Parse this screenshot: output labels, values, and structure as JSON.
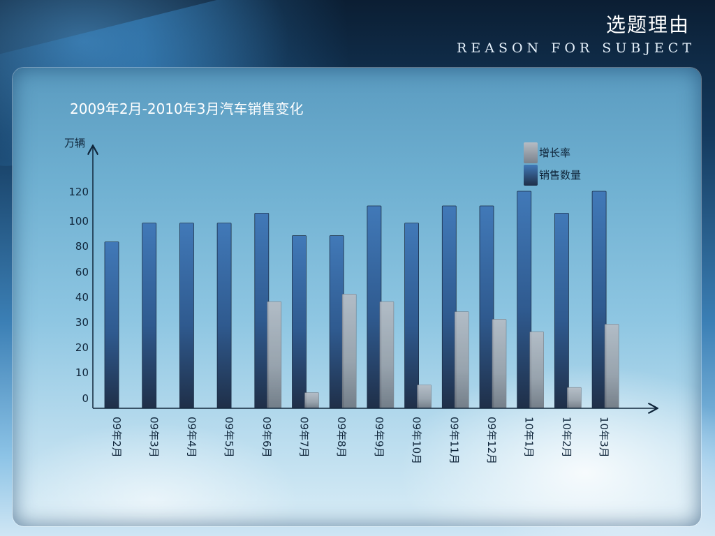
{
  "header": {
    "title": "选题理由",
    "subtitle": "REASON FOR SUBJECT"
  },
  "colors": {
    "sales_bar": "#3b6ea8",
    "sales_bar_dark": "#233a5a",
    "growth_bar": "#a9b0b8",
    "growth_bar_dark": "#6c747e"
  },
  "chart_data": {
    "type": "bar",
    "title": "2009年2月-2010年3月汽车销售变化",
    "ylabel": "万辆",
    "y_ticks": [
      "0",
      "10",
      "20",
      "30",
      "40",
      "60",
      "80",
      "100",
      "120"
    ],
    "categories": [
      "09年2月",
      "09年3月",
      "09年4月",
      "09年5月",
      "09年6月",
      "09年7月",
      "09年8月",
      "09年9月",
      "09年10月",
      "09年11月",
      "09年12月",
      "10年1月",
      "10年2月",
      "10年3月"
    ],
    "category_labels": [
      [
        "09",
        "年",
        "2",
        "月"
      ],
      [
        "09",
        "年",
        "3",
        "月"
      ],
      [
        "09",
        "年",
        "4",
        "月"
      ],
      [
        "09",
        "年",
        "5",
        "月"
      ],
      [
        "09",
        "年",
        "6",
        "月"
      ],
      [
        "09",
        "年",
        "7",
        "月"
      ],
      [
        "09",
        "年",
        "8",
        "月"
      ],
      [
        "09",
        "年",
        "9",
        "月"
      ],
      [
        "09",
        "年",
        "10",
        "月"
      ],
      [
        "09",
        "年",
        "11",
        "月"
      ],
      [
        "09",
        "年",
        "12",
        "月"
      ],
      [
        "10",
        "年",
        "1",
        "月"
      ],
      [
        "10",
        "年",
        "2",
        "月"
      ],
      [
        "10",
        "年",
        "3",
        "月"
      ]
    ],
    "series": [
      {
        "name": "增长率",
        "values": [
          null,
          null,
          null,
          null,
          38,
          2,
          42,
          38,
          5,
          34,
          31,
          26,
          4,
          29
        ]
      },
      {
        "name": "销售数量",
        "values": [
          83,
          98,
          98,
          98,
          105,
          88,
          88,
          110,
          98,
          110,
          110,
          120,
          105,
          120
        ]
      }
    ],
    "legend_position": "top-right",
    "grid": false
  }
}
